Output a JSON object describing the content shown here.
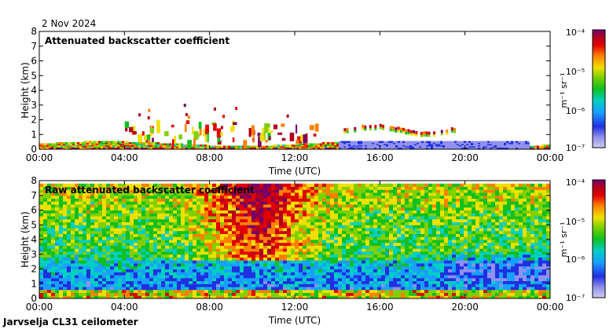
{
  "date": "2 Nov 2024",
  "footer": "Jarvselja CL31 ceilometer",
  "colormap": [
    "#ccccf2",
    "#9090ee",
    "#2030e0",
    "#18a0ff",
    "#00d0c0",
    "#10c020",
    "#80d000",
    "#f0e000",
    "#ff8000",
    "#e00000",
    "#b00020",
    "#700070"
  ],
  "chart_data": [
    {
      "type": "heatmap",
      "title": "Attenuated backscatter coefficient",
      "xlabel": "Time (UTC)",
      "ylabel": "Height (km)",
      "x_ticks": [
        "00:00",
        "04:00",
        "08:00",
        "12:00",
        "16:00",
        "20:00",
        "00:00"
      ],
      "xlim_hours": [
        0,
        24
      ],
      "ylim": [
        0,
        8
      ],
      "y_ticks": [
        0,
        1,
        2,
        3,
        4,
        5,
        6,
        7,
        8
      ],
      "colorbar": {
        "label": "m⁻¹ sr⁻¹",
        "tick_labels": [
          "10⁻⁴",
          "10⁻⁵",
          "10⁻⁶",
          "10⁻⁷"
        ],
        "range": [
          1e-07,
          0.0001
        ]
      },
      "features": [
        {
          "name": "surface layer",
          "hours": [
            0,
            24
          ],
          "height_km": [
            0,
            0.5
          ]
        },
        {
          "name": "cloud base layer",
          "hours": [
            14.3,
            19.5
          ],
          "height_km": [
            1.2,
            1.6
          ]
        },
        {
          "name": "scattered cloud",
          "hours": [
            4,
            13
          ],
          "height_km": [
            1.3,
            3.5
          ]
        }
      ]
    },
    {
      "type": "heatmap",
      "title": "Raw attenuated backscatter coefficient",
      "xlabel": "Time (UTC)",
      "ylabel": "Height (km)",
      "x_ticks": [
        "00:00",
        "04:00",
        "08:00",
        "12:00",
        "16:00",
        "20:00",
        "00:00"
      ],
      "xlim_hours": [
        0,
        24
      ],
      "ylim": [
        0,
        8
      ],
      "y_ticks": [
        0,
        1,
        2,
        3,
        4,
        5,
        6,
        7,
        8
      ],
      "colorbar": {
        "label": "m⁻¹ sr⁻¹",
        "tick_labels": [
          "10⁻⁴",
          "10⁻⁵",
          "10⁻⁶",
          "10⁻⁷"
        ],
        "range": [
          1e-07,
          0.0001
        ]
      },
      "features": [
        {
          "name": "noise field",
          "hours": [
            0,
            24
          ],
          "height_km": [
            0,
            7.7
          ]
        },
        {
          "name": "high noise daytime",
          "hours": [
            7.5,
            13
          ],
          "height_km": [
            3,
            7.7
          ]
        }
      ]
    }
  ]
}
